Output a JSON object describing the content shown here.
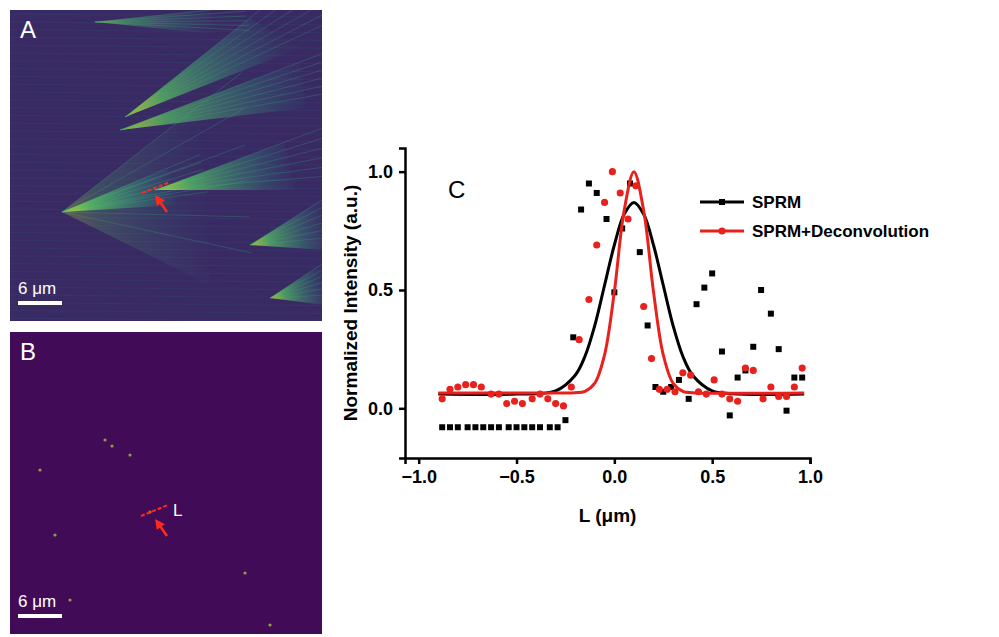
{
  "panels": [
    {
      "label": "A",
      "scale_bar": "6 μm"
    },
    {
      "label": "B",
      "scale_bar": "6 μm",
      "line_label": "L"
    }
  ],
  "chart_data": {
    "type": "scatter",
    "label": "C",
    "x_label": "L (μm)",
    "y_label": "Normalized Intensity (a.u.)",
    "xlim": [
      -1.07,
      1.0
    ],
    "ylim": [
      -0.21,
      1.1
    ],
    "xticks": [
      {
        "value": -1.0,
        "label": "−1.0"
      },
      {
        "value": -0.5,
        "label": "−0.5"
      },
      {
        "value": 0,
        "label": "0.0"
      },
      {
        "value": 0.5,
        "label": "0.5"
      },
      {
        "value": 1.0,
        "label": "1.0"
      }
    ],
    "yticks": [
      {
        "value": 0,
        "label": "0.0"
      },
      {
        "value": 0.5,
        "label": "0.5"
      },
      {
        "value": 1.0,
        "label": "1.0"
      }
    ],
    "legend": "top-right",
    "series": [
      {
        "name": "SPRM",
        "color": "#000000",
        "marker": "square",
        "line_style": "solid",
        "x": [
          -0.88,
          -0.84,
          -0.8,
          -0.75,
          -0.71,
          -0.67,
          -0.63,
          -0.59,
          -0.54,
          -0.5,
          -0.46,
          -0.42,
          -0.38,
          -0.33,
          -0.29,
          -0.25,
          -0.21,
          -0.17,
          -0.13,
          -0.09,
          -0.04,
          0.0,
          0.04,
          0.08,
          0.13,
          0.17,
          0.21,
          0.25,
          0.29,
          0.33,
          0.38,
          0.42,
          0.46,
          0.5,
          0.55,
          0.59,
          0.63,
          0.67,
          0.71,
          0.75,
          0.8,
          0.84,
          0.88,
          0.92,
          0.96
        ],
        "values": [
          -0.08,
          -0.08,
          -0.08,
          -0.08,
          -0.08,
          -0.08,
          -0.08,
          -0.08,
          -0.08,
          -0.08,
          -0.08,
          -0.08,
          -0.08,
          -0.08,
          -0.08,
          -0.05,
          0.3,
          0.84,
          0.95,
          0.91,
          0.8,
          0.49,
          0.76,
          0.95,
          0.66,
          0.35,
          0.09,
          0.07,
          0.09,
          0.12,
          0.04,
          0.44,
          0.51,
          0.57,
          0.24,
          -0.03,
          0.13,
          0.16,
          0.26,
          0.5,
          0.4,
          0.25,
          -0.01,
          0.13,
          0.13
        ],
        "fit": {
          "x": [
            -0.9,
            -0.5,
            -0.3,
            -0.2,
            -0.15,
            -0.1,
            -0.05,
            0.0,
            0.05,
            0.1,
            0.15,
            0.2,
            0.25,
            0.3,
            0.35,
            0.4,
            0.5,
            0.6,
            0.97
          ],
          "values": [
            0.06,
            0.06,
            0.074,
            0.14,
            0.22,
            0.35,
            0.52,
            0.69,
            0.82,
            0.87,
            0.82,
            0.69,
            0.52,
            0.35,
            0.22,
            0.14,
            0.074,
            0.062,
            0.06
          ]
        }
      },
      {
        "name": "SPRM+Deconvolution",
        "color": "#e8211c",
        "marker": "circle",
        "line_style": "solid",
        "x": [
          -0.88,
          -0.84,
          -0.8,
          -0.76,
          -0.72,
          -0.68,
          -0.63,
          -0.59,
          -0.55,
          -0.51,
          -0.47,
          -0.42,
          -0.38,
          -0.34,
          -0.3,
          -0.26,
          -0.22,
          -0.18,
          -0.13,
          -0.09,
          -0.05,
          -0.01,
          0.03,
          0.07,
          0.11,
          0.15,
          0.19,
          0.23,
          0.27,
          0.31,
          0.35,
          0.39,
          0.43,
          0.47,
          0.51,
          0.55,
          0.59,
          0.63,
          0.67,
          0.71,
          0.76,
          0.8,
          0.84,
          0.88,
          0.92,
          0.96
        ],
        "values": [
          0.04,
          0.08,
          0.09,
          0.1,
          0.1,
          0.09,
          0.06,
          0.06,
          0.02,
          0.03,
          0.02,
          0.04,
          0.06,
          0.04,
          0.02,
          0.01,
          0.09,
          0.29,
          0.46,
          0.69,
          0.87,
          1.0,
          0.91,
          0.8,
          0.94,
          0.43,
          0.21,
          0.08,
          0.08,
          0.07,
          0.15,
          0.14,
          0.07,
          0.06,
          0.12,
          0.06,
          0.04,
          0.03,
          0.17,
          0.16,
          0.04,
          0.09,
          0.05,
          0.05,
          0.09,
          0.17
        ],
        "fit": {
          "x": [
            -0.9,
            -0.3,
            -0.2,
            -0.15,
            -0.1,
            -0.05,
            0.0,
            0.05,
            0.1,
            0.15,
            0.2,
            0.25,
            0.3,
            0.35,
            0.4,
            0.97
          ],
          "values": [
            0.065,
            0.065,
            0.066,
            0.072,
            0.106,
            0.226,
            0.493,
            0.835,
            1.0,
            0.835,
            0.493,
            0.226,
            0.106,
            0.072,
            0.066,
            0.065
          ]
        }
      }
    ]
  }
}
